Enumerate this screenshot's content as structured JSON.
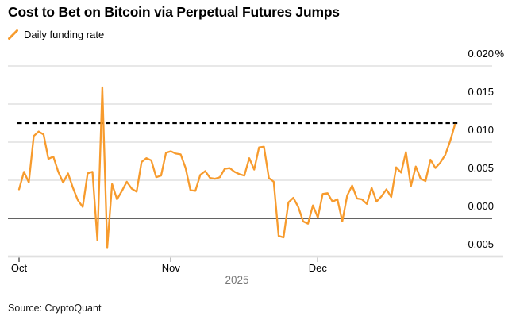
{
  "header": {
    "title": "Cost to Bet on Bitcoin via Perpetual Futures Jumps"
  },
  "legend": {
    "label": "Daily funding rate",
    "swatch_color": "#F79B2D"
  },
  "footer": {
    "source": "Source: CryptoQuant"
  },
  "chart_data": {
    "type": "line",
    "title": "Cost to Bet on Bitcoin via Perpetual Futures Jumps",
    "legend_entries": [
      "Daily funding rate"
    ],
    "unit": "%",
    "y_ticks": [
      {
        "value": 0.02,
        "label": "0.020",
        "suffix": "%"
      },
      {
        "value": 0.015,
        "label": "0.015",
        "suffix": ""
      },
      {
        "value": 0.01,
        "label": "0.010",
        "suffix": ""
      },
      {
        "value": 0.005,
        "label": "0.005",
        "suffix": ""
      },
      {
        "value": 0.0,
        "label": "0.000",
        "suffix": ""
      },
      {
        "value": -0.005,
        "label": "-0.005",
        "suffix": ""
      }
    ],
    "ylim": [
      -0.005,
      0.02
    ],
    "grid": true,
    "legend_position": "top-left",
    "x_ticks": [
      {
        "label": "Oct",
        "day_index": 0
      },
      {
        "label": "Nov",
        "day_index": 31
      },
      {
        "label": "Dec",
        "day_index": 61
      }
    ],
    "year_label": "2025",
    "reference_line": {
      "style": "dashed",
      "value": 0.0125,
      "color": "#000000"
    },
    "series": [
      {
        "name": "Daily funding rate",
        "color": "#F79B2D",
        "x_unit": "day index (0 = first Oct tick, daily points)",
        "values": [
          0.0038,
          0.0061,
          0.0047,
          0.0108,
          0.0114,
          0.011,
          0.0078,
          0.0081,
          0.0061,
          0.0047,
          0.0059,
          0.004,
          0.0024,
          0.0015,
          0.0059,
          0.0061,
          -0.0029,
          0.0172,
          -0.0038,
          0.0045,
          0.0025,
          0.0036,
          0.0048,
          0.0039,
          0.0035,
          0.0074,
          0.0079,
          0.0076,
          0.0054,
          0.0056,
          0.0086,
          0.0088,
          0.0085,
          0.0084,
          0.0066,
          0.0037,
          0.0036,
          0.0057,
          0.0062,
          0.0053,
          0.0052,
          0.0054,
          0.0065,
          0.0066,
          0.0061,
          0.0058,
          0.0056,
          0.0079,
          0.0064,
          0.0093,
          0.0094,
          0.0053,
          0.0048,
          -0.0023,
          -0.0025,
          0.0021,
          0.0027,
          0.0015,
          -0.0004,
          -0.0007,
          0.0017,
          0.0001,
          0.0032,
          0.0033,
          0.0022,
          0.0025,
          -0.0004,
          0.003,
          0.0043,
          0.0026,
          0.0025,
          0.0019,
          0.004,
          0.0022,
          0.0029,
          0.0038,
          0.0028,
          0.0067,
          0.006,
          0.0087,
          0.0042,
          0.0068,
          0.0052,
          0.0049,
          0.0077,
          0.0066,
          0.0073,
          0.0083,
          0.0101,
          0.0123
        ]
      }
    ]
  }
}
